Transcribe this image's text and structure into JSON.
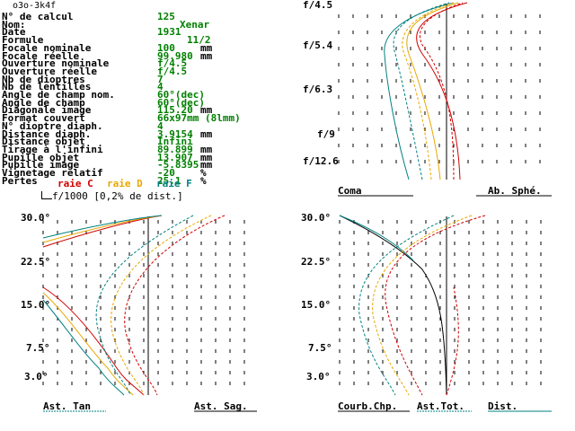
{
  "header": {
    "file_id": "o3o-3k4f"
  },
  "specs": [
    {
      "label": "N° de calcul",
      "value": "125",
      "unit": ""
    },
    {
      "label": "Nom:",
      "value": "Xenar",
      "unit": ""
    },
    {
      "label": "Date",
      "value": "1931",
      "unit": ""
    },
    {
      "label": "Formule",
      "value": "11/2",
      "unit": ""
    },
    {
      "label": "Focale nominale",
      "value": "100",
      "unit": "mm"
    },
    {
      "label": "Focale réelle",
      "value": "99.980",
      "unit": "mm"
    },
    {
      "label": "Ouverture nominale",
      "value": "f/4.5",
      "unit": ""
    },
    {
      "label": "Ouverture réelle",
      "value": "f/4.5",
      "unit": ""
    },
    {
      "label": "Nb de dioptres",
      "value": "7",
      "unit": ""
    },
    {
      "label": "Nb de lentilles",
      "value": "4",
      "unit": ""
    },
    {
      "label": "Angle de champ nom.",
      "value": "60°(dec)",
      "unit": ""
    },
    {
      "label": "Angle de champ",
      "value": "60°(dec)",
      "unit": ""
    },
    {
      "label": "Diagonale image",
      "value": "115.20",
      "unit": "mm"
    },
    {
      "label": "Format couvert",
      "value": "66x97mm (8lmm)",
      "unit": ""
    },
    {
      "label": "N° dioptre diaph.",
      "value": "4",
      "unit": ""
    },
    {
      "label": "Distance diaph.",
      "value": "3.9154",
      "unit": "mm"
    },
    {
      "label": "Distance objet",
      "value": "Infini",
      "unit": ""
    },
    {
      "label": "Tirage à l'infini",
      "value": "89.899",
      "unit": "mm"
    },
    {
      "label": "Pupille objet",
      "value": "13.907",
      "unit": "mm"
    },
    {
      "label": "Pupille image",
      "value": "-5.8395",
      "unit": "mm"
    },
    {
      "label": "Vignetage relatif",
      "value": "-20",
      "unit": "%"
    },
    {
      "label": "Pertes",
      "value": "25.1",
      "unit": "%"
    }
  ],
  "legend": {
    "raie_c": "raie C",
    "raie_d": "raie D",
    "raie_f": "raie F",
    "scale_note": "f/1000 [0,2% de dist.]",
    "colors": {
      "C": "#d00000",
      "D": "#e8a800",
      "F": "#008080"
    }
  },
  "panels": {
    "aperture": {
      "ticks": [
        "f/4.5",
        "f/5.4",
        "f/6.3",
        "f/9",
        "f/12.6"
      ],
      "left_label": "Coma",
      "right_label": "Ab. Sphé."
    },
    "field_left": {
      "ticks": [
        "30.0°",
        "22.5°",
        "15.0°",
        "7.5°",
        "3.0°"
      ],
      "left_label": "Ast. Tan",
      "right_label": "Ast. Sag."
    },
    "field_right": {
      "ticks": [
        "30.0°",
        "22.5°",
        "15.0°",
        "7.5°",
        "3.0°"
      ],
      "label1": "Courb.Chp.",
      "label2": "Ast.Tot.",
      "label3": "Dist."
    }
  }
}
